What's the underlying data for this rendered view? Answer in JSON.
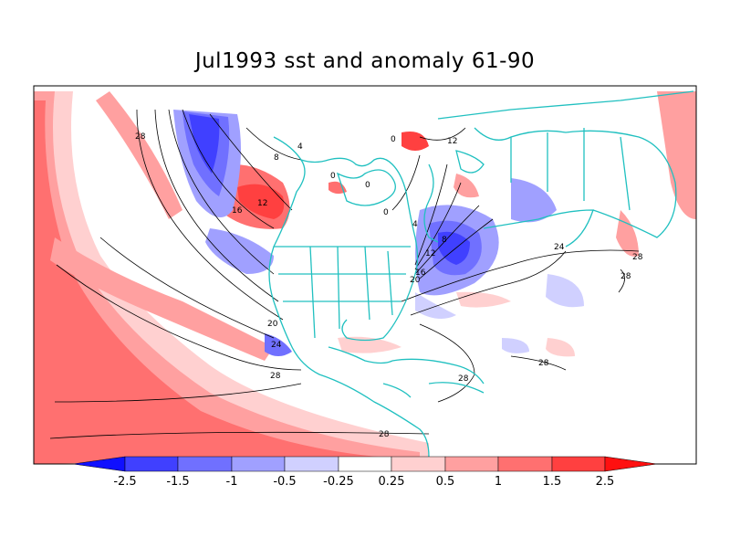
{
  "title": "Jul1993 sst and anomaly 61-90",
  "colors": {
    "coast": "#20c0c0",
    "contour": "#000000",
    "neg": [
      "#1010ff",
      "#4040ff",
      "#7070ff",
      "#a0a0ff",
      "#d0d0ff"
    ],
    "pos": [
      "#ffd0d0",
      "#ffa0a0",
      "#ff7070",
      "#ff4040",
      "#ff1010"
    ]
  },
  "colorbar": {
    "ticks": [
      "-2.5",
      "-1.5",
      "-1",
      "-0.5",
      "-0.25",
      "0.25",
      "0.5",
      "1",
      "1.5",
      "2.5"
    ]
  },
  "contour_labels": [
    "28",
    "28",
    "28",
    "28",
    "28",
    "28",
    "28",
    "24",
    "24",
    "20",
    "20",
    "16",
    "16",
    "12",
    "12",
    "12",
    "8",
    "8",
    "4",
    "4",
    "0",
    "0",
    "0",
    "0"
  ]
}
